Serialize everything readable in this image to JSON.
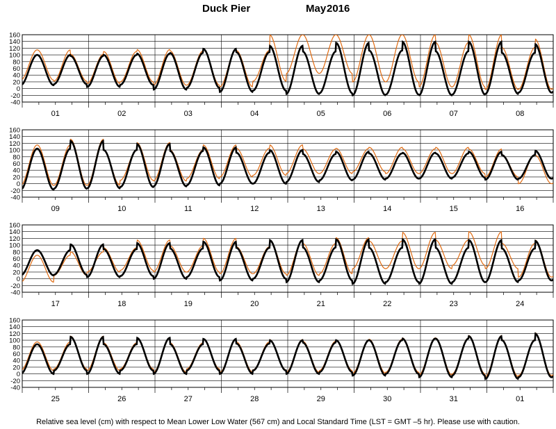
{
  "title": {
    "station": "Duck Pier",
    "month": "May",
    "year": "2016"
  },
  "footnote": "Relative sea level (cm) with respect to Mean Lower Low Water (567 cm) and Local Standard Time (LST = GMT –5 hr). Please use with caution.",
  "colors": {
    "predicted": "#000000",
    "observed": "#e06a10",
    "grid": "#000000"
  },
  "chart_data": {
    "type": "line",
    "ylim": [
      -40,
      160
    ],
    "yticks": [
      -40,
      -20,
      0,
      20,
      40,
      60,
      80,
      100,
      120,
      140,
      160
    ],
    "days_per_panel": 8,
    "grid": true,
    "series_names": [
      "predicted",
      "observed"
    ],
    "panels": [
      {
        "day_labels": [
          "01",
          "02",
          "03",
          "04",
          "05",
          "06",
          "07",
          "08"
        ],
        "predicted": {
          "highs": [
            100,
            97,
            100,
            104,
            106,
            118,
            108,
            127,
            110,
            136,
            113,
            139,
            111,
            139,
            106,
            132
          ],
          "lows": [
            10,
            13,
            5,
            11,
            -3,
            2,
            -10,
            -6,
            -16,
            -14,
            -20,
            -18,
            -20,
            -18,
            -16,
            -12
          ]
        },
        "observed": {
          "highs": [
            115,
            102,
            110,
            116,
            112,
            118,
            113,
            160,
            160,
            160,
            160,
            160,
            137,
            160,
            122,
            147
          ],
          "lows": [
            25,
            22,
            15,
            20,
            10,
            10,
            5,
            22,
            45,
            45,
            20,
            20,
            5,
            5,
            -3,
            -2
          ]
        }
      },
      {
        "day_labels": [
          "09",
          "10",
          "11",
          "12",
          "13",
          "14",
          "15",
          "16"
        ],
        "predicted": {
          "highs": [
            104,
            127,
            100,
            118,
            97,
            108,
            92,
            100,
            88,
            95,
            90,
            92,
            90,
            95,
            85,
            98
          ],
          "lows": [
            -18,
            -15,
            -14,
            -10,
            -8,
            -5,
            0,
            0,
            5,
            10,
            12,
            15,
            15,
            18,
            12,
            15
          ]
        },
        "observed": {
          "highs": [
            115,
            132,
            100,
            122,
            100,
            115,
            105,
            115,
            103,
            105,
            108,
            104,
            108,
            103,
            86,
            85
          ],
          "lows": [
            -5,
            -5,
            -5,
            10,
            8,
            15,
            20,
            25,
            30,
            30,
            35,
            30,
            30,
            30,
            20,
            0
          ]
        }
      },
      {
        "day_labels": [
          "17",
          "18",
          "19",
          "20",
          "21",
          "22",
          "23",
          "24"
        ],
        "predicted": {
          "highs": [
            85,
            102,
            88,
            106,
            90,
            110,
            92,
            115,
            93,
            117,
            92,
            117,
            92,
            115,
            90,
            113
          ],
          "lows": [
            10,
            12,
            5,
            8,
            0,
            5,
            -5,
            0,
            -10,
            -5,
            -15,
            -10,
            -15,
            -10,
            -10,
            -5
          ]
        },
        "observed": {
          "highs": [
            70,
            80,
            92,
            115,
            98,
            120,
            95,
            115,
            105,
            122,
            112,
            138,
            115,
            140,
            105,
            115
          ],
          "lows": [
            -10,
            10,
            20,
            25,
            20,
            20,
            15,
            15,
            10,
            15,
            30,
            30,
            30,
            40,
            30,
            5
          ]
        }
      },
      {
        "day_labels": [
          "25",
          "26",
          "27",
          "28",
          "29",
          "30",
          "31",
          "01"
        ],
        "predicted": {
          "highs": [
            88,
            110,
            88,
            107,
            88,
            104,
            90,
            100,
            93,
            100,
            100,
            105,
            105,
            112,
            100,
            120
          ],
          "lows": [
            0,
            10,
            0,
            10,
            0,
            10,
            0,
            10,
            0,
            5,
            -5,
            0,
            -10,
            -5,
            -15,
            -10
          ]
        },
        "observed": {
          "highs": [
            95,
            112,
            92,
            108,
            92,
            103,
            95,
            102,
            97,
            100,
            103,
            107,
            107,
            114,
            102,
            122
          ],
          "lows": [
            10,
            15,
            10,
            15,
            5,
            15,
            5,
            12,
            5,
            10,
            2,
            5,
            -3,
            0,
            -8,
            -5
          ]
        }
      }
    ]
  }
}
